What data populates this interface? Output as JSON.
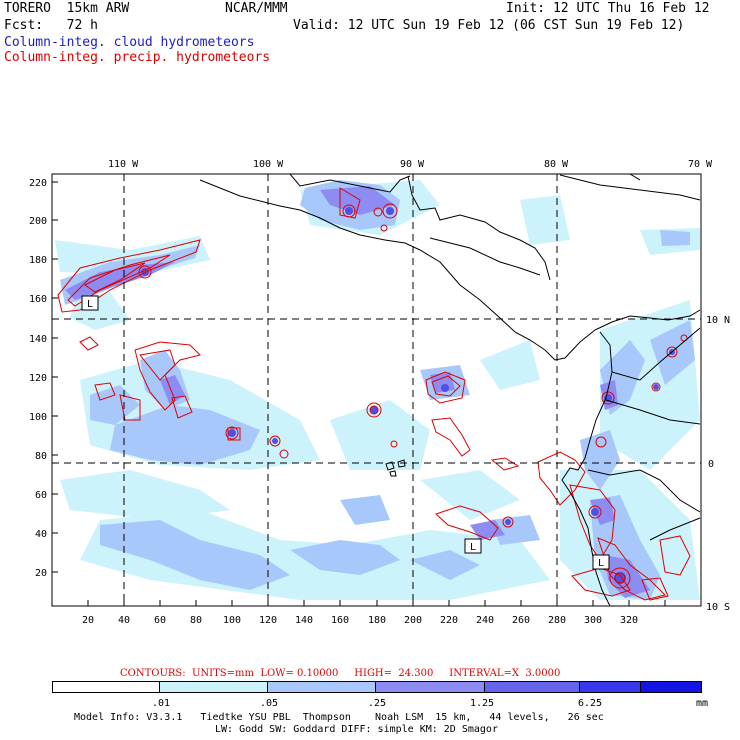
{
  "header": {
    "model": "TORERO  15km ARW",
    "forecast": "Fcst:   72 h",
    "agency": "NCAR/MMM",
    "init": "Init: 12 UTC Thu 16 Feb 12",
    "valid": "Valid: 12 UTC Sun 19 Feb 12 (06 CST Sun 19 Feb 12)",
    "field1": "Column-integ. cloud hydrometeors",
    "field2": "Column-integ. precip. hydrometeors"
  },
  "map": {
    "top_lon_labels": [
      "110 W",
      "100 W",
      "90 W",
      "80 W",
      "70 W"
    ],
    "right_lat_labels": [
      "10 N",
      "0",
      "10 S"
    ],
    "y_ticks": [
      "220",
      "200",
      "180",
      "160",
      "140",
      "120",
      "100",
      "80",
      "60",
      "40",
      "20"
    ],
    "x_ticks": [
      "20",
      "40",
      "60",
      "80",
      "100",
      "120",
      "140",
      "160",
      "180",
      "200",
      "220",
      "240",
      "260",
      "280",
      "300",
      "320"
    ],
    "low_markers": [
      "L",
      "L",
      "L"
    ]
  },
  "contours": {
    "label": "CONTOURS:  UNITS=mm  LOW= 0.10000     HIGH=  24.300     INTERVAL=X  3.0000"
  },
  "colorbar": {
    "colors": [
      "#ffffff",
      "#ccf2fc",
      "#a8c8fb",
      "#8c8cf2",
      "#6464ec",
      "#3838ec",
      "#1414e4"
    ],
    "labels": [
      ".01",
      ".05",
      ".25",
      "1.25",
      "6.25"
    ],
    "unit": "mm"
  },
  "footer": {
    "line1": "Model Info: V3.3.1   Tiedtke YSU PBL  Thompson    Noah LSM  15 km,   44 levels,   26 sec",
    "line2": "LW: Godd SW: Goddard DIFF: simple KM: 2D Smagor"
  }
}
